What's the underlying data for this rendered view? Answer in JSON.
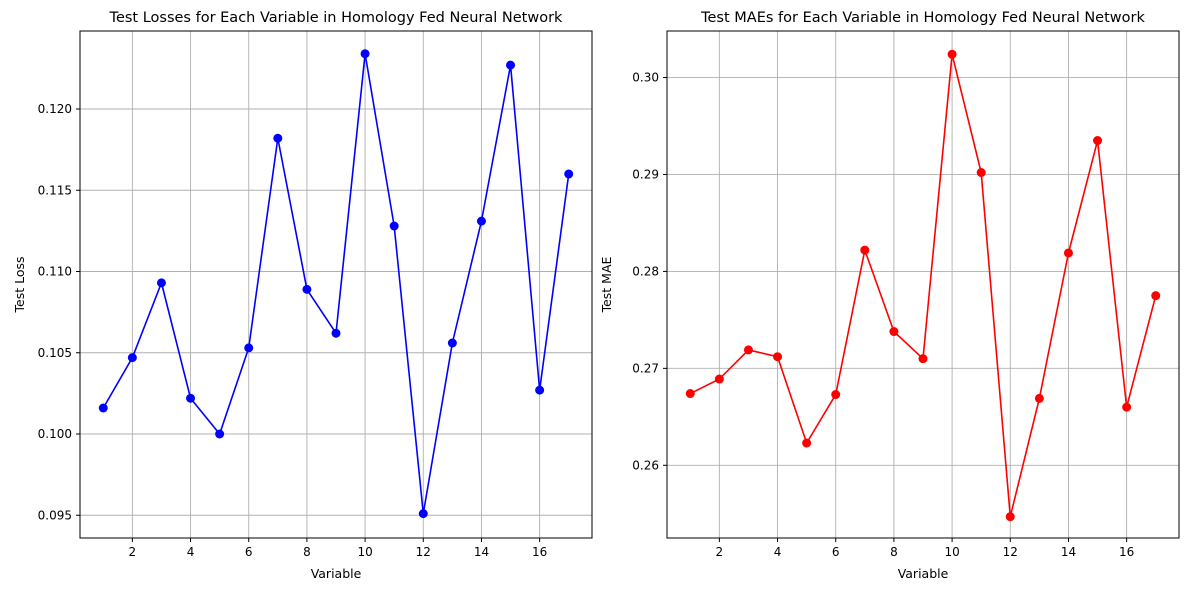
{
  "chart_data": [
    {
      "type": "line",
      "title": "Test Losses for Each Variable in Homology Fed Neural Network",
      "xlabel": "Variable",
      "ylabel": "Test Loss",
      "x": [
        1,
        2,
        3,
        4,
        5,
        6,
        7,
        8,
        9,
        10,
        11,
        12,
        13,
        14,
        15,
        16,
        17
      ],
      "series": [
        {
          "color": "#0000ff",
          "marker": "circle",
          "values": [
            0.1016,
            0.1047,
            0.1093,
            0.1022,
            0.1,
            0.1053,
            0.1182,
            0.1089,
            0.1062,
            0.1234,
            0.1128,
            0.0951,
            0.1056,
            0.1131,
            0.1227,
            0.1027,
            0.116
          ]
        }
      ],
      "xlim": [
        0.2,
        17.8
      ],
      "ylim": [
        0.0936,
        0.1248
      ],
      "xticks": [
        2,
        4,
        6,
        8,
        10,
        12,
        14,
        16
      ],
      "yticks": [
        0.095,
        0.1,
        0.105,
        0.11,
        0.115,
        0.12
      ],
      "ytick_labels": [
        "0.095",
        "0.100",
        "0.105",
        "0.110",
        "0.115",
        "0.120"
      ],
      "grid": true
    },
    {
      "type": "line",
      "title": "Test MAEs for Each Variable in Homology Fed Neural Network",
      "xlabel": "Variable",
      "ylabel": "Test MAE",
      "x": [
        1,
        2,
        3,
        4,
        5,
        6,
        7,
        8,
        9,
        10,
        11,
        12,
        13,
        14,
        15,
        16,
        17
      ],
      "series": [
        {
          "color": "#ff0000",
          "marker": "circle",
          "values": [
            0.2674,
            0.2689,
            0.2719,
            0.2712,
            0.2623,
            0.2673,
            0.2822,
            0.2738,
            0.271,
            0.3024,
            0.2902,
            0.2547,
            0.2669,
            0.2819,
            0.2935,
            0.266,
            0.2775
          ]
        }
      ],
      "xlim": [
        0.2,
        17.8
      ],
      "ylim": [
        0.2525,
        0.3048
      ],
      "xticks": [
        2,
        4,
        6,
        8,
        10,
        12,
        14,
        16
      ],
      "yticks": [
        0.26,
        0.27,
        0.28,
        0.29,
        0.3
      ],
      "ytick_labels": [
        "0.26",
        "0.27",
        "0.28",
        "0.29",
        "0.30"
      ],
      "grid": true
    }
  ]
}
